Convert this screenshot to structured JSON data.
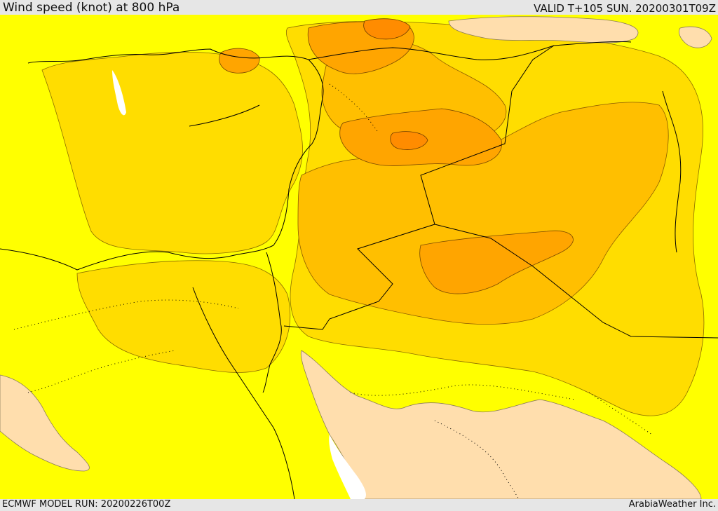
{
  "header": {
    "title": "Wind speed (knot) at 800 hPa",
    "valid": "VALID T+105 SUN. 20200301T09Z"
  },
  "footer": {
    "model_run": "ECMWF MODEL RUN: 20200226T00Z",
    "credit": "ArabiaWeather Inc."
  },
  "map": {
    "field": "wind_speed_800hPa",
    "colors": {
      "lowest": "#ffdead",
      "low": "#ffff00",
      "mid": "#ffdd00",
      "mid_high": "#ffbf00",
      "high": "#ffa500",
      "highest": "#ff8c00",
      "no_data": "#ffffff"
    }
  }
}
